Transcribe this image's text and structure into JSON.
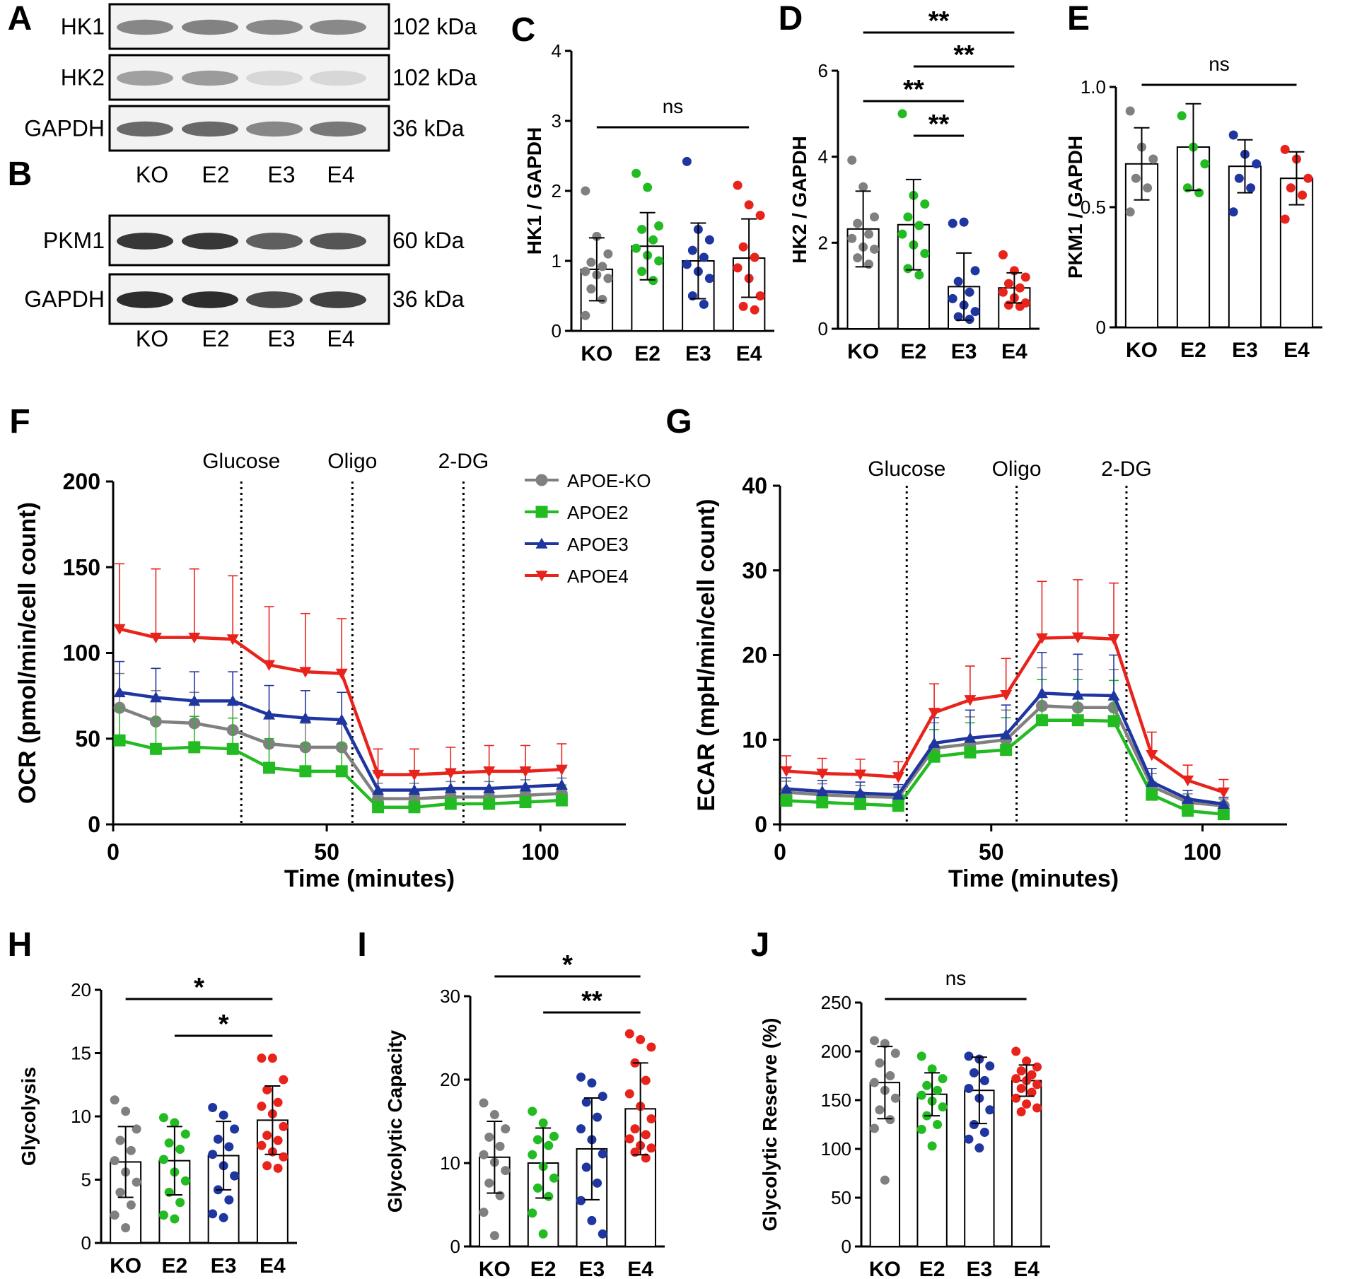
{
  "figure": {
    "panel_letters": [
      "A",
      "B",
      "C",
      "D",
      "E",
      "F",
      "G",
      "H",
      "I",
      "J"
    ],
    "group_labels": [
      "KO",
      "E2",
      "E3",
      "E4"
    ]
  },
  "blot_a": {
    "rows": [
      {
        "label": "HK1",
        "size": "102 kDa"
      },
      {
        "label": "HK2",
        "size": "102 kDa"
      },
      {
        "label": "GAPDH",
        "size": "36 kDa"
      }
    ]
  },
  "blot_b": {
    "rows": [
      {
        "label": "PKM1",
        "size": "60 kDa"
      },
      {
        "label": "GAPDH",
        "size": "36 kDa"
      }
    ]
  },
  "colors": {
    "KO": "#808080",
    "E2": "#22bb22",
    "E3": "#1f35a0",
    "E4": "#e8231c"
  },
  "chart_data": [
    {
      "panel": "C",
      "type": "bar",
      "ylabel": "HK1 / GAPDH",
      "categories": [
        "KO",
        "E2",
        "E3",
        "E4"
      ],
      "ylim": [
        0,
        4
      ],
      "yticks": [
        "0",
        "1",
        "2",
        "3",
        "4"
      ],
      "means": [
        0.88,
        1.21,
        1.0,
        1.04
      ],
      "sd": [
        0.45,
        0.48,
        0.54,
        0.56
      ],
      "points": [
        [
          2.0,
          1.35,
          1.1,
          0.98,
          0.92,
          0.85,
          0.8,
          0.75,
          0.6,
          0.45,
          0.22
        ],
        [
          2.25,
          2.05,
          1.5,
          1.45,
          1.3,
          1.18,
          1.08,
          1.0,
          0.85,
          0.72
        ],
        [
          2.42,
          1.45,
          1.3,
          1.15,
          1.05,
          0.95,
          0.85,
          0.75,
          0.5,
          0.38
        ],
        [
          2.08,
          1.8,
          1.65,
          1.2,
          1.05,
          0.9,
          0.75,
          0.5,
          0.35,
          0.3
        ]
      ],
      "comparisons": [
        {
          "from": "KO",
          "to": "E4",
          "label": "ns"
        }
      ]
    },
    {
      "panel": "D",
      "type": "bar",
      "ylabel": "HK2 / GAPDH",
      "categories": [
        "KO",
        "E2",
        "E3",
        "E4"
      ],
      "ylim": [
        0,
        6
      ],
      "yticks": [
        "0",
        "2",
        "4",
        "6"
      ],
      "means": [
        2.32,
        2.42,
        0.98,
        0.95
      ],
      "sd": [
        0.88,
        1.05,
        0.78,
        0.35
      ],
      "points": [
        [
          3.92,
          3.3,
          2.6,
          2.45,
          2.2,
          2.1,
          1.9,
          1.85,
          1.65,
          1.5
        ],
        [
          5.0,
          3.1,
          2.9,
          2.6,
          2.4,
          2.2,
          1.95,
          1.75,
          1.4,
          1.25
        ],
        [
          2.45,
          2.48,
          1.35,
          1.1,
          0.85,
          0.7,
          0.55,
          0.4,
          0.28,
          0.22
        ],
        [
          1.72,
          1.35,
          1.2,
          1.05,
          0.95,
          0.85,
          0.72,
          0.6,
          0.55,
          0.52
        ]
      ],
      "comparisons": [
        {
          "from": "KO",
          "to": "E4",
          "label": "**"
        },
        {
          "from": "E2",
          "to": "E4",
          "label": "**"
        },
        {
          "from": "KO",
          "to": "E3",
          "label": "**"
        },
        {
          "from": "E2",
          "to": "E3",
          "label": "**"
        }
      ]
    },
    {
      "panel": "E",
      "type": "bar",
      "ylabel": "PKM1 / GAPDH",
      "categories": [
        "KO",
        "E2",
        "E3",
        "E4"
      ],
      "ylim": [
        0,
        1.0
      ],
      "yticks": [
        "0",
        "0.5",
        "1.0"
      ],
      "means": [
        0.68,
        0.75,
        0.67,
        0.62
      ],
      "sd": [
        0.15,
        0.18,
        0.11,
        0.11
      ],
      "points": [
        [
          0.9,
          0.75,
          0.7,
          0.62,
          0.58,
          0.48
        ],
        [
          0.88,
          0.75,
          0.68,
          0.58,
          0.56
        ],
        [
          0.8,
          0.72,
          0.68,
          0.62,
          0.58,
          0.48
        ],
        [
          0.74,
          0.7,
          0.62,
          0.58,
          0.55,
          0.45
        ]
      ],
      "comparisons": [
        {
          "from": "KO",
          "to": "E4",
          "label": "ns"
        }
      ]
    },
    {
      "panel": "F",
      "type": "line",
      "xlabel": "Time (minutes)",
      "ylabel": "OCR (pmol/min/cell count)",
      "xlim": [
        0,
        120
      ],
      "ylim": [
        0,
        200
      ],
      "xticks": [
        "0",
        "50",
        "100"
      ],
      "yticks": [
        "0",
        "50",
        "100",
        "150",
        "200"
      ],
      "injections": [
        {
          "x": 30,
          "label": "Glucose"
        },
        {
          "x": 56,
          "label": "Oligo"
        },
        {
          "x": 82,
          "label": "2-DG"
        }
      ],
      "x": [
        1.5,
        10,
        19,
        28,
        36.5,
        45,
        53.5,
        62,
        70.5,
        79,
        88,
        96.5,
        105
      ],
      "series": [
        {
          "name": "APOE-KO",
          "group": "KO",
          "marker": "circle",
          "values": [
            68,
            60,
            59,
            55,
            47,
            45,
            45,
            15,
            15,
            16,
            16,
            17,
            18
          ],
          "err": [
            20,
            18,
            18,
            17,
            15,
            14,
            14,
            9,
            9,
            9,
            9,
            9,
            9
          ]
        },
        {
          "name": "APOE2",
          "group": "E2",
          "marker": "square",
          "values": [
            49,
            44,
            45,
            44,
            33,
            31,
            31,
            10,
            10,
            12,
            12,
            13,
            14
          ],
          "err": [
            19,
            18,
            18,
            18,
            17,
            16,
            16,
            9,
            9,
            9,
            9,
            9,
            9
          ]
        },
        {
          "name": "APOE3",
          "group": "E3",
          "marker": "triangle-up",
          "values": [
            77,
            74,
            72,
            72,
            64,
            62,
            61,
            20,
            20,
            21,
            21,
            22,
            23
          ],
          "err": [
            18,
            17,
            17,
            17,
            17,
            16,
            16,
            10,
            10,
            10,
            10,
            10,
            10
          ]
        },
        {
          "name": "APOE4",
          "group": "E4",
          "marker": "triangle-down",
          "values": [
            114,
            109,
            109,
            108,
            93,
            89,
            88,
            29,
            29,
            30,
            31,
            31,
            32
          ],
          "err": [
            38,
            40,
            40,
            37,
            34,
            34,
            32,
            15,
            15,
            15,
            15,
            15,
            15
          ]
        }
      ]
    },
    {
      "panel": "G",
      "type": "line",
      "xlabel": "Time (minutes)",
      "ylabel": "ECAR (mpH/min/cell count)",
      "xlim": [
        0,
        120
      ],
      "ylim": [
        0,
        40
      ],
      "xticks": [
        "0",
        "50",
        "100"
      ],
      "yticks": [
        "0",
        "10",
        "20",
        "30",
        "40"
      ],
      "injections": [
        {
          "x": 30,
          "label": "Glucose"
        },
        {
          "x": 56,
          "label": "Oligo"
        },
        {
          "x": 82,
          "label": "2-DG"
        }
      ],
      "x": [
        1.5,
        10,
        19,
        28,
        36.5,
        45,
        53.5,
        62,
        70.5,
        79,
        88,
        96.5,
        105
      ],
      "series": [
        {
          "name": "APOE-KO",
          "group": "KO",
          "marker": "circle",
          "values": [
            3.8,
            3.5,
            3.3,
            3.2,
            9.0,
            9.5,
            10.0,
            14.0,
            13.8,
            13.8,
            4.5,
            2.6,
            2.2
          ],
          "err": [
            1.3,
            1.3,
            1.3,
            1.2,
            3.0,
            3.2,
            3.5,
            4.5,
            4.5,
            4.5,
            1.5,
            1.0,
            0.8
          ]
        },
        {
          "name": "APOE2",
          "group": "E2",
          "marker": "square",
          "values": [
            2.8,
            2.6,
            2.4,
            2.2,
            8.0,
            8.5,
            8.8,
            12.3,
            12.3,
            12.2,
            3.5,
            1.6,
            1.2
          ],
          "err": [
            1.2,
            1.2,
            1.2,
            1.1,
            3.2,
            3.5,
            3.8,
            4.8,
            4.8,
            4.8,
            1.5,
            1.0,
            0.8
          ]
        },
        {
          "name": "APOE3",
          "group": "E3",
          "marker": "triangle-up",
          "values": [
            4.2,
            3.9,
            3.7,
            3.5,
            9.6,
            10.2,
            10.6,
            15.5,
            15.3,
            15.2,
            5.0,
            3.0,
            2.4
          ],
          "err": [
            1.3,
            1.3,
            1.3,
            1.2,
            3.0,
            3.3,
            3.5,
            4.8,
            4.8,
            4.8,
            1.6,
            1.0,
            0.8
          ]
        },
        {
          "name": "APOE4",
          "group": "E4",
          "marker": "triangle-down",
          "values": [
            6.3,
            6.0,
            5.9,
            5.6,
            13.2,
            14.7,
            15.3,
            22.0,
            22.1,
            21.9,
            8.2,
            5.2,
            3.8
          ],
          "err": [
            1.8,
            1.8,
            1.8,
            1.8,
            3.4,
            4.0,
            4.3,
            6.7,
            6.8,
            6.6,
            2.7,
            1.8,
            1.5
          ]
        }
      ]
    },
    {
      "panel": "H",
      "type": "bar",
      "ylabel": "Glycolysis",
      "categories": [
        "KO",
        "E2",
        "E3",
        "E4"
      ],
      "ylim": [
        0,
        20
      ],
      "yticks": [
        "0",
        "5",
        "10",
        "15",
        "20"
      ],
      "means": [
        6.4,
        6.5,
        6.9,
        9.7
      ],
      "sd": [
        2.8,
        2.7,
        2.7,
        2.7
      ],
      "points": [
        [
          11.3,
          10.4,
          9.0,
          8.1,
          7.3,
          6.5,
          5.6,
          4.8,
          4.0,
          3.0,
          2.2,
          1.2
        ],
        [
          9.9,
          9.5,
          8.6,
          7.9,
          7.4,
          6.6,
          5.6,
          4.9,
          4.0,
          3.2,
          2.2,
          1.9
        ],
        [
          10.7,
          10.1,
          9.0,
          8.2,
          7.6,
          7.0,
          6.1,
          5.3,
          4.2,
          3.4,
          2.3,
          2.0
        ],
        [
          14.6,
          14.6,
          12.9,
          12.1,
          11.1,
          10.8,
          10.2,
          9.2,
          8.5,
          8.1,
          7.7,
          7.2,
          6.8,
          6.1,
          5.9
        ]
      ],
      "comparisons": [
        {
          "from": "KO",
          "to": "E4",
          "label": "*"
        },
        {
          "from": "E2",
          "to": "E4",
          "label": "*"
        }
      ]
    },
    {
      "panel": "I",
      "type": "bar",
      "ylabel": "Glycolytic Capacity",
      "categories": [
        "KO",
        "E2",
        "E3",
        "E4"
      ],
      "ylim": [
        0,
        30
      ],
      "yticks": [
        "0",
        "10",
        "20",
        "30"
      ],
      "means": [
        10.7,
        10.0,
        11.7,
        16.5
      ],
      "sd": [
        4.3,
        4.2,
        6.1,
        5.5
      ],
      "points": [
        [
          17.2,
          15.8,
          14.1,
          13.1,
          12.0,
          11.0,
          10.1,
          9.1,
          7.6,
          6.1,
          4.1,
          1.3
        ],
        [
          16.2,
          14.8,
          13.2,
          12.8,
          12.1,
          11.0,
          9.6,
          8.2,
          7.0,
          6.0,
          4.0,
          1.5
        ],
        [
          20.3,
          19.6,
          18.0,
          17.3,
          15.5,
          14.1,
          12.8,
          11.1,
          9.5,
          7.6,
          5.5,
          3.1,
          1.5
        ],
        [
          25.5,
          24.8,
          23.9,
          22.0,
          19.9,
          18.3,
          16.8,
          15.3,
          14.1,
          13.4,
          12.9,
          12.1,
          11.8,
          11.3,
          10.6
        ]
      ],
      "comparisons": [
        {
          "from": "KO",
          "to": "E4",
          "label": "*"
        },
        {
          "from": "E2",
          "to": "E4",
          "label": "**"
        }
      ]
    },
    {
      "panel": "J",
      "type": "bar",
      "ylabel": "Glycolytic Reserve (%)",
      "categories": [
        "KO",
        "E2",
        "E3",
        "E4"
      ],
      "ylim": [
        0,
        250
      ],
      "yticks": [
        "0",
        "50",
        "100",
        "150",
        "200",
        "250"
      ],
      "means": [
        168,
        156,
        160,
        170
      ],
      "sd": [
        37,
        22,
        34,
        16
      ],
      "points": [
        [
          211,
          208,
          198,
          188,
          175,
          168,
          160,
          152,
          140,
          130,
          121,
          68
        ],
        [
          195,
          182,
          172,
          165,
          160,
          155,
          149,
          143,
          134,
          125,
          120,
          103
        ],
        [
          195,
          192,
          185,
          178,
          170,
          162,
          152,
          140,
          125,
          117,
          110,
          101
        ],
        [
          200,
          190,
          184,
          180,
          176,
          172,
          170,
          166,
          162,
          158,
          152,
          146,
          142,
          138
        ]
      ],
      "comparisons": [
        {
          "from": "KO",
          "to": "E4",
          "label": "ns"
        }
      ]
    }
  ]
}
